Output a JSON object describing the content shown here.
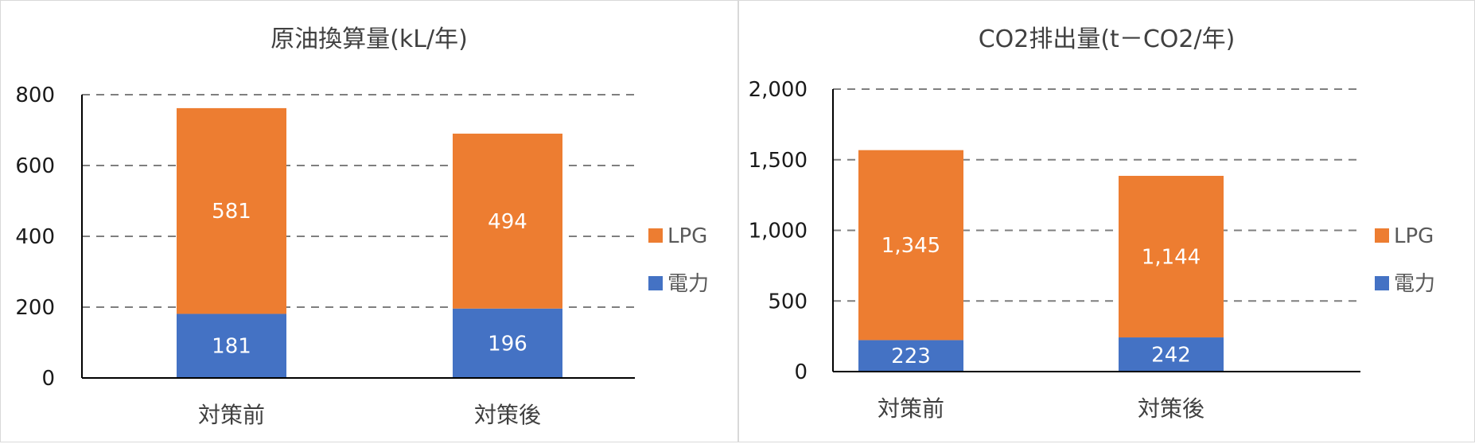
{
  "colors": {
    "LPG": "#ED7D31",
    "電力": "#4472C4",
    "grid": "#7f7f7f",
    "axis": "#000000"
  },
  "chart_data": [
    {
      "type": "bar",
      "stacked": true,
      "title": "原油換算量(kL/年)",
      "categories": [
        "対策前",
        "対策後"
      ],
      "series": [
        {
          "name": "電力",
          "values": [
            181,
            196
          ],
          "labels": [
            "181",
            "196"
          ]
        },
        {
          "name": "LPG",
          "values": [
            581,
            494
          ],
          "labels": [
            "581",
            "494"
          ]
        }
      ],
      "ylim": [
        0,
        800
      ],
      "yticks": [
        0,
        200,
        400,
        600,
        800
      ],
      "ytick_labels": [
        "0",
        "200",
        "400",
        "600",
        "800"
      ],
      "grid": true,
      "legend": "right",
      "legend_entries": [
        "LPG",
        "電力"
      ]
    },
    {
      "type": "bar",
      "stacked": true,
      "title": "CO2排出量(t－CO2/年)",
      "categories": [
        "対策前",
        "対策後"
      ],
      "series": [
        {
          "name": "電力",
          "values": [
            223,
            242
          ],
          "labels": [
            "223",
            "242"
          ]
        },
        {
          "name": "LPG",
          "values": [
            1345,
            1144
          ],
          "labels": [
            "1,345",
            "1,144"
          ]
        }
      ],
      "ylim": [
        0,
        2000
      ],
      "yticks": [
        0,
        500,
        1000,
        1500,
        2000
      ],
      "ytick_labels": [
        "0",
        "500",
        "1,000",
        "1,500",
        "2,000"
      ],
      "grid": true,
      "legend": "right",
      "legend_entries": [
        "LPG",
        "電力"
      ]
    }
  ]
}
